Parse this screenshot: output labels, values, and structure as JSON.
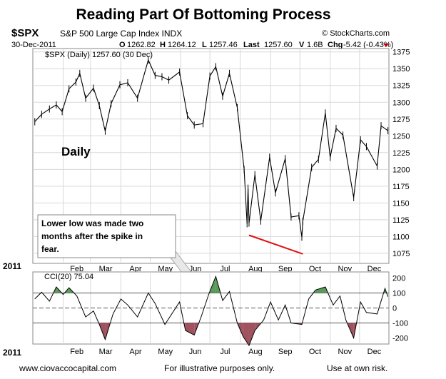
{
  "header": {
    "title": "Reading Part Of Bottoming Process",
    "symbol": "$SPX",
    "name": "S&P 500 Large Cap Index INDX",
    "watermark": "© StockCharts.com",
    "date": "30-Dec-2011",
    "o_label": "O",
    "o_value": "1262.82",
    "h_label": "H",
    "h_value": "1264.12",
    "l_label": "L",
    "l_value": "1257.46",
    "last_label": "Last",
    "last_value": "1257.60",
    "v_label": "V",
    "v_value": "1.6B",
    "chg_label": "Chg",
    "chg_value": "-5.42 (-0.43%)"
  },
  "annotations": {
    "price_legend": "$SPX (Daily) 1257.60 (30 Dec)",
    "daily_label": "Daily",
    "callout": [
      "Lower low was made two",
      "months after the spike in",
      "fear."
    ],
    "cci_legend": "CCI(20) 75.04",
    "year_label": "2011",
    "year_label_bottom": "2011"
  },
  "footer": {
    "left": "www.ciovaccocapital.com",
    "center": "For illustrative purposes only.",
    "right": "Use at own risk."
  },
  "colors": {
    "price": "#000000",
    "trendline": "#e01010",
    "cci_positive_fill": "#5a9a5a",
    "cci_negative_fill": "#a0525e",
    "grid": "#d8d8d8",
    "down_arrow": "#c00000"
  },
  "chart_data": [
    {
      "type": "line",
      "title": "$SPX (Daily) 1257.60 (30 Dec)",
      "ylim": [
        1060,
        1380
      ],
      "y_ticks": [
        1075,
        1100,
        1125,
        1150,
        1175,
        1200,
        1225,
        1250,
        1275,
        1300,
        1325,
        1350,
        1375
      ],
      "month_ticks": [
        "Feb",
        "Mar",
        "Apr",
        "May",
        "Jun",
        "Jul",
        "Aug",
        "Sep",
        "Oct",
        "Nov",
        "Dec"
      ],
      "series": [
        {
          "name": "$SPX",
          "points": [
            [
              "2011-01-03",
              1271
            ],
            [
              "2011-01-10",
              1282
            ],
            [
              "2011-01-18",
              1290
            ],
            [
              "2011-01-25",
              1296
            ],
            [
              "2011-01-31",
              1286
            ],
            [
              "2011-02-07",
              1320
            ],
            [
              "2011-02-14",
              1330
            ],
            [
              "2011-02-18",
              1343
            ],
            [
              "2011-02-24",
              1306
            ],
            [
              "2011-03-04",
              1321
            ],
            [
              "2011-03-10",
              1295
            ],
            [
              "2011-03-16",
              1257
            ],
            [
              "2011-03-22",
              1298
            ],
            [
              "2011-03-31",
              1326
            ],
            [
              "2011-04-08",
              1329
            ],
            [
              "2011-04-18",
              1306
            ],
            [
              "2011-04-29",
              1363
            ],
            [
              "2011-05-06",
              1340
            ],
            [
              "2011-05-13",
              1338
            ],
            [
              "2011-05-20",
              1333
            ],
            [
              "2011-05-31",
              1345
            ],
            [
              "2011-06-08",
              1280
            ],
            [
              "2011-06-15",
              1266
            ],
            [
              "2011-06-24",
              1268
            ],
            [
              "2011-07-01",
              1339
            ],
            [
              "2011-07-07",
              1353
            ],
            [
              "2011-07-14",
              1309
            ],
            [
              "2011-07-21",
              1343
            ],
            [
              "2011-07-29",
              1292
            ],
            [
              "2011-08-05",
              1200
            ],
            [
              "2011-08-08",
              1119
            ],
            [
              "2011-08-09",
              1172
            ],
            [
              "2011-08-10",
              1120
            ],
            [
              "2011-08-16",
              1192
            ],
            [
              "2011-08-22",
              1123
            ],
            [
              "2011-08-31",
              1218
            ],
            [
              "2011-09-06",
              1165
            ],
            [
              "2011-09-16",
              1216
            ],
            [
              "2011-09-22",
              1129
            ],
            [
              "2011-09-30",
              1131
            ],
            [
              "2011-10-03",
              1099
            ],
            [
              "2011-10-04",
              1123
            ],
            [
              "2011-10-13",
              1203
            ],
            [
              "2011-10-20",
              1215
            ],
            [
              "2011-10-27",
              1284
            ],
            [
              "2011-11-01",
              1218
            ],
            [
              "2011-11-07",
              1261
            ],
            [
              "2011-11-14",
              1251
            ],
            [
              "2011-11-25",
              1158
            ],
            [
              "2011-12-02",
              1244
            ],
            [
              "2011-12-08",
              1234
            ],
            [
              "2011-12-19",
              1205
            ],
            [
              "2011-12-23",
              1265
            ],
            [
              "2011-12-30",
              1257.6
            ]
          ]
        }
      ],
      "trendline": {
        "from": [
          "2011-08-10",
          1102
        ],
        "to": [
          "2011-10-04",
          1074
        ]
      }
    },
    {
      "type": "area",
      "title": "CCI(20) 75.04",
      "ylim": [
        -240,
        240
      ],
      "y_ticks": [
        200,
        100,
        0,
        -100,
        -200
      ],
      "month_ticks": [
        "Feb",
        "Mar",
        "Apr",
        "May",
        "Jun",
        "Jul",
        "Aug",
        "Sep",
        "Oct",
        "Nov",
        "Dec"
      ],
      "series": [
        {
          "name": "CCI(20)",
          "points": [
            [
              "2011-01-03",
              60
            ],
            [
              "2011-01-10",
              105
            ],
            [
              "2011-01-18",
              45
            ],
            [
              "2011-01-25",
              140
            ],
            [
              "2011-02-01",
              90
            ],
            [
              "2011-02-07",
              135
            ],
            [
              "2011-02-15",
              80
            ],
            [
              "2011-02-24",
              -60
            ],
            [
              "2011-03-04",
              -20
            ],
            [
              "2011-03-10",
              -110
            ],
            [
              "2011-03-16",
              -210
            ],
            [
              "2011-03-24",
              -40
            ],
            [
              "2011-04-01",
              60
            ],
            [
              "2011-04-08",
              20
            ],
            [
              "2011-04-18",
              -60
            ],
            [
              "2011-04-29",
              100
            ],
            [
              "2011-05-06",
              30
            ],
            [
              "2011-05-16",
              -110
            ],
            [
              "2011-05-31",
              40
            ],
            [
              "2011-06-06",
              -150
            ],
            [
              "2011-06-15",
              -180
            ],
            [
              "2011-06-22",
              -60
            ],
            [
              "2011-06-30",
              95
            ],
            [
              "2011-07-07",
              210
            ],
            [
              "2011-07-14",
              50
            ],
            [
              "2011-07-21",
              110
            ],
            [
              "2011-07-29",
              -100
            ],
            [
              "2011-08-04",
              -190
            ],
            [
              "2011-08-10",
              -250
            ],
            [
              "2011-08-16",
              -150
            ],
            [
              "2011-08-25",
              -80
            ],
            [
              "2011-09-01",
              40
            ],
            [
              "2011-09-09",
              -80
            ],
            [
              "2011-09-16",
              20
            ],
            [
              "2011-09-22",
              -100
            ],
            [
              "2011-10-03",
              -110
            ],
            [
              "2011-10-10",
              60
            ],
            [
              "2011-10-17",
              120
            ],
            [
              "2011-10-27",
              140
            ],
            [
              "2011-11-04",
              20
            ],
            [
              "2011-11-11",
              80
            ],
            [
              "2011-11-17",
              -80
            ],
            [
              "2011-11-25",
              -200
            ],
            [
              "2011-12-02",
              40
            ],
            [
              "2011-12-08",
              -30
            ],
            [
              "2011-12-19",
              -40
            ],
            [
              "2011-12-27",
              130
            ],
            [
              "2011-12-30",
              75.04
            ]
          ]
        }
      ],
      "reference_lines": [
        100,
        0,
        -100
      ]
    }
  ]
}
